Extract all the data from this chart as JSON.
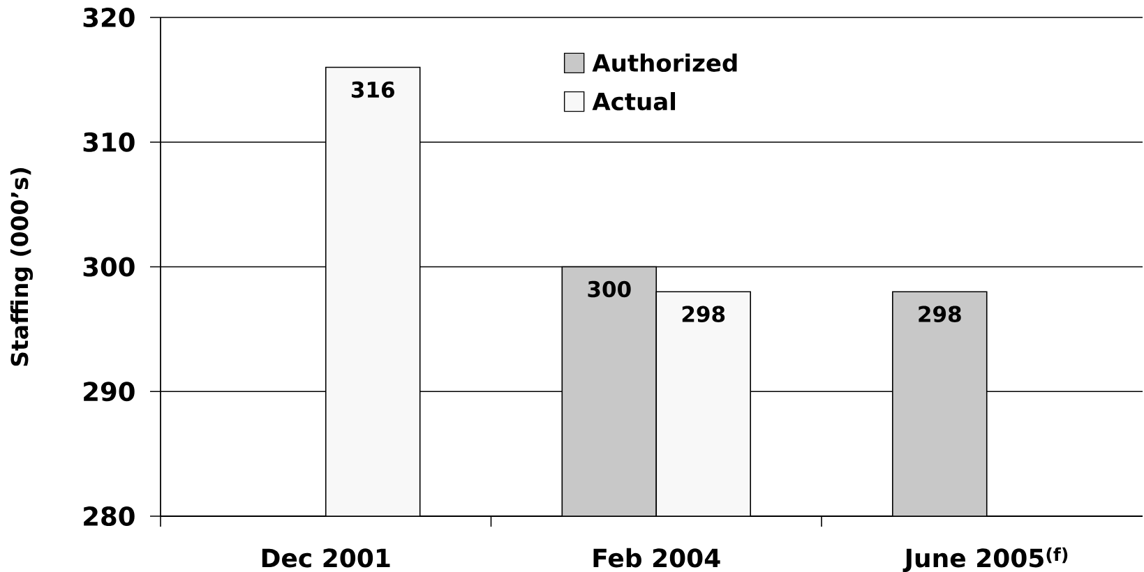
{
  "chart_data": {
    "type": "bar",
    "ylabel": "Staffing (000’s)",
    "categories": [
      "Dec 2001",
      "Feb 2004",
      "June 2005$^{(f)}$"
    ],
    "series": [
      {
        "name": "Authorized",
        "color": "#c8c8c8",
        "values": [
          null,
          300,
          298
        ]
      },
      {
        "name": "Actual",
        "color": "#f8f8f8",
        "values": [
          316,
          298,
          null
        ]
      }
    ],
    "ylim": [
      280,
      320
    ],
    "yticks": [
      280,
      290,
      300,
      310,
      320
    ],
    "grid": "y",
    "legend": "top",
    "data_labels": true
  }
}
